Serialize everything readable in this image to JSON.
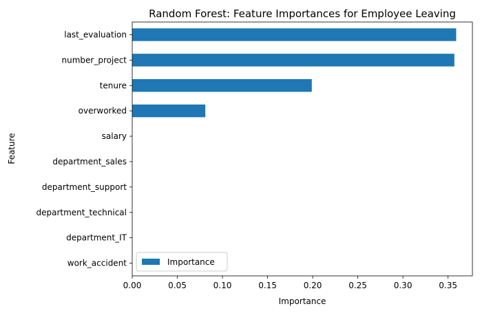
{
  "chart_data": {
    "type": "bar",
    "orientation": "horizontal",
    "title": "Random Forest: Feature Importances for Employee Leaving",
    "xlabel": "Importance",
    "ylabel": "Feature",
    "categories": [
      "last_evaluation",
      "number_project",
      "tenure",
      "overworked",
      "salary",
      "department_sales",
      "department_support",
      "department_technical",
      "department_IT",
      "work_accident"
    ],
    "series": [
      {
        "name": "Importance",
        "color": "#1f77b4",
        "values": [
          0.359,
          0.357,
          0.199,
          0.081,
          0.0,
          0.0,
          0.0,
          0.0,
          0.0,
          0.0
        ]
      }
    ],
    "xlim": [
      0,
      0.377
    ],
    "xticks": [
      "0.00",
      "0.05",
      "0.10",
      "0.15",
      "0.20",
      "0.25",
      "0.30",
      "0.35"
    ],
    "grid": false,
    "legend_position": "bottom-left"
  }
}
